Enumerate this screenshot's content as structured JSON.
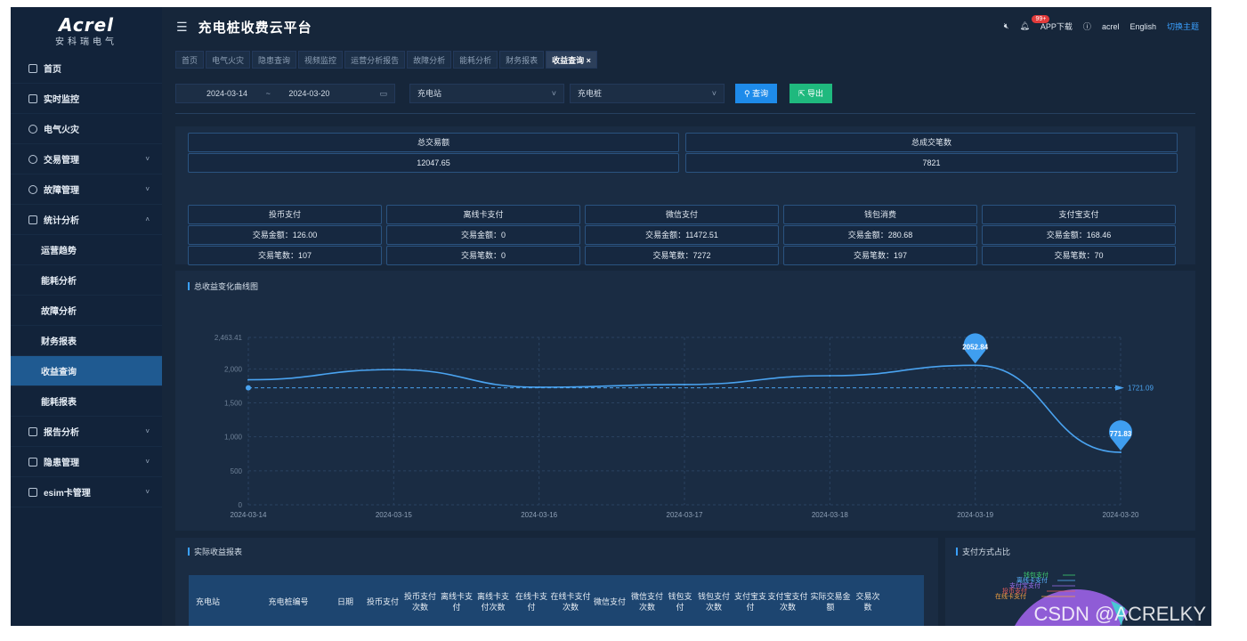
{
  "logo": {
    "brand": "Acrel",
    "sub": "安科瑞电气"
  },
  "app": {
    "title": "充电桩收费云平台"
  },
  "topbar": {
    "badge": "99+",
    "app_download": "APP下载",
    "user": "acrel",
    "lang": "English",
    "theme": "切换主题"
  },
  "sidebar": {
    "items": [
      {
        "label": "首页",
        "arrow": ""
      },
      {
        "label": "实时监控",
        "arrow": ""
      },
      {
        "label": "电气火灾",
        "arrow": ""
      },
      {
        "label": "交易管理",
        "arrow": "˅"
      },
      {
        "label": "故障管理",
        "arrow": "˅"
      },
      {
        "label": "统计分析",
        "arrow": "˄"
      },
      {
        "label": "运营趋势",
        "arrow": ""
      },
      {
        "label": "能耗分析",
        "arrow": ""
      },
      {
        "label": "故障分析",
        "arrow": ""
      },
      {
        "label": "财务报表",
        "arrow": ""
      },
      {
        "label": "收益查询",
        "arrow": ""
      },
      {
        "label": "能耗报表",
        "arrow": ""
      },
      {
        "label": "报告分析",
        "arrow": "˅"
      },
      {
        "label": "隐患管理",
        "arrow": "˅"
      },
      {
        "label": "esim卡管理",
        "arrow": "˅"
      }
    ]
  },
  "tabs": [
    "首页",
    "电气火灾",
    "隐患查询",
    "视频监控",
    "运营分析报告",
    "故障分析",
    "能耗分析",
    "财务报表",
    "收益查询 ×"
  ],
  "filters": {
    "start": "2024-03-14",
    "sep": "~",
    "end": "2024-03-20",
    "station": "充电站",
    "pile": "充电桩",
    "query": "查询",
    "export": "导出"
  },
  "summary": {
    "total_amount_label": "总交易额",
    "total_amount": "12047.65",
    "total_count_label": "总成交笔数",
    "total_count": "7821"
  },
  "payments": [
    {
      "name": "投币支付",
      "amount": "交易金额：126.00",
      "count": "交易笔数：107"
    },
    {
      "name": "离线卡支付",
      "amount": "交易金额：0",
      "count": "交易笔数：0"
    },
    {
      "name": "微信支付",
      "amount": "交易金额：11472.51",
      "count": "交易笔数：7272"
    },
    {
      "name": "钱包消费",
      "amount": "交易金额：280.68",
      "count": "交易笔数：197"
    },
    {
      "name": "支付宝支付",
      "amount": "交易金额：168.46",
      "count": "交易笔数：70"
    }
  ],
  "chart_title": "总收益变化曲线图",
  "chart_data": {
    "type": "line",
    "x": [
      "2024-03-14",
      "2024-03-15",
      "2024-03-16",
      "2024-03-17",
      "2024-03-18",
      "2024-03-19",
      "2024-03-20"
    ],
    "series": [
      {
        "values": [
          1840,
          1990,
          1730,
          1770,
          1900,
          2052.84,
          771.83
        ]
      }
    ],
    "yticks": [
      "0",
      "500",
      "1,000",
      "1,500",
      "2,000",
      "2,463.41"
    ],
    "ylim": [
      0,
      2463.41
    ],
    "average_line": 1721.09,
    "max_label": "2052.84",
    "min_label": "771.83",
    "avg_label": "1721.09",
    "color": "#4aa3f0"
  },
  "report": {
    "title": "实际收益报表",
    "headers": [
      "充电站",
      "充电桩编号",
      "日期",
      "投币支付",
      "投币支付次数",
      "离线卡支付",
      "离线卡支付次数",
      "在线卡支付",
      "在线卡支付次数",
      "微信支付",
      "微信支付次数",
      "钱包支付",
      "钱包支付次数",
      "支付宝支付",
      "支付宝支付次数",
      "实际交易金额",
      "交易次数"
    ]
  },
  "pie": {
    "title": "支付方式占比",
    "labels": [
      "钱包支付",
      "离线卡支付",
      "支付宝支付",
      "投币支付",
      "在线卡支付"
    ]
  },
  "watermark": "CSDN @ACRELKY"
}
